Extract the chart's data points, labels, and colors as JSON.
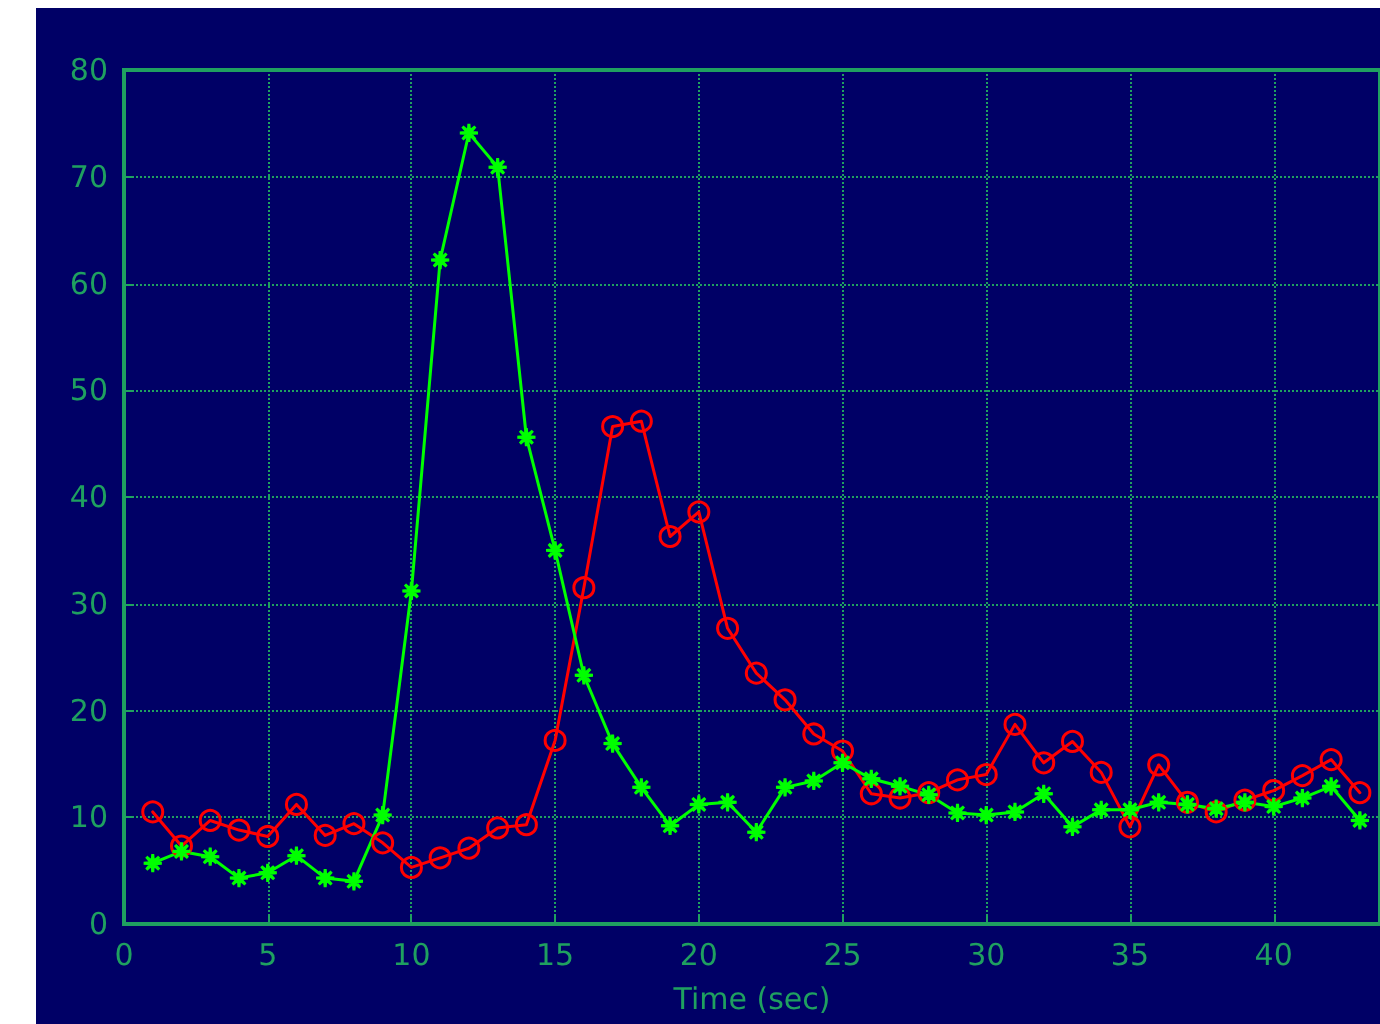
{
  "chart_data": {
    "type": "line",
    "xlabel": "Time (sec)",
    "x": [
      1,
      2,
      3,
      4,
      5,
      6,
      7,
      8,
      9,
      10,
      11,
      12,
      13,
      14,
      15,
      16,
      17,
      18,
      19,
      20,
      21,
      22,
      23,
      24,
      25,
      26,
      27,
      28,
      29,
      30,
      31,
      32,
      33,
      34,
      35,
      36,
      37,
      38,
      39,
      40,
      41,
      42,
      43
    ],
    "series": [
      {
        "color": "#ff0000",
        "marker": "circle",
        "values": [
          10.5,
          7.3,
          9.7,
          8.8,
          8.2,
          11.2,
          8.3,
          9.4,
          7.6,
          5.3,
          6.2,
          7.1,
          9.0,
          9.3,
          17.2,
          31.5,
          46.6,
          47.1,
          36.3,
          38.6,
          27.7,
          23.5,
          21.0,
          17.8,
          16.2,
          12.2,
          11.8,
          12.3,
          13.5,
          14.0,
          18.7,
          15.1,
          17.1,
          14.2,
          9.1,
          14.9,
          11.4,
          10.5,
          11.6,
          12.5,
          13.9,
          15.4,
          12.3
        ]
      },
      {
        "color": "#00ff00",
        "marker": "cross",
        "values": [
          5.7,
          6.8,
          6.3,
          4.3,
          4.8,
          6.4,
          4.3,
          4.0,
          10.2,
          31.2,
          62.2,
          74.1,
          70.9,
          45.6,
          35.0,
          23.3,
          16.9,
          12.8,
          9.2,
          11.2,
          11.4,
          8.6,
          12.8,
          13.4,
          15.1,
          13.6,
          12.9,
          12.1,
          10.4,
          10.2,
          10.5,
          12.2,
          9.1,
          10.7,
          10.7,
          11.4,
          11.2,
          10.8,
          11.4,
          11.0,
          11.8,
          12.9,
          9.7
        ]
      }
    ],
    "xlim": [
      0,
      43.7
    ],
    "xticks": [
      0,
      5,
      10,
      15,
      20,
      25,
      30,
      35,
      40
    ],
    "ylim": [
      0,
      80
    ],
    "yticks": [
      0,
      10,
      20,
      30,
      40,
      50,
      60,
      70,
      80
    ],
    "grid": true,
    "line_style": "solid"
  }
}
